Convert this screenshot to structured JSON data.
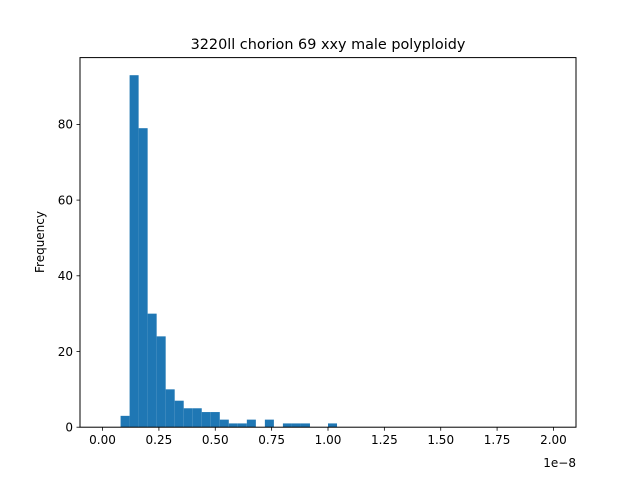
{
  "chart_data": {
    "type": "bar",
    "title": "3220ll chorion 69 xxy male polyploidy",
    "xlabel": "",
    "ylabel": "Frequency",
    "x_offset_label": "1e−8",
    "bar_color": "#1f77b4",
    "grid": false,
    "legend": "none",
    "xlim": [
      -0.1,
      2.1
    ],
    "ylim": [
      0,
      97.65
    ],
    "x_ticks": [
      0.0,
      0.25,
      0.5,
      0.75,
      1.0,
      1.25,
      1.5,
      1.75,
      2.0
    ],
    "x_tick_labels": [
      "0.00",
      "0.25",
      "0.50",
      "0.75",
      "1.00",
      "1.25",
      "1.50",
      "1.75",
      "2.00"
    ],
    "y_ticks": [
      0,
      20,
      40,
      60,
      80
    ],
    "y_tick_labels": [
      "0",
      "20",
      "40",
      "60",
      "80"
    ],
    "bins": [
      {
        "x0": 0.08,
        "x1": 0.12,
        "value": 3
      },
      {
        "x0": 0.12,
        "x1": 0.16,
        "value": 93
      },
      {
        "x0": 0.16,
        "x1": 0.2,
        "value": 79
      },
      {
        "x0": 0.2,
        "x1": 0.24,
        "value": 30
      },
      {
        "x0": 0.24,
        "x1": 0.28,
        "value": 24
      },
      {
        "x0": 0.28,
        "x1": 0.32,
        "value": 10
      },
      {
        "x0": 0.32,
        "x1": 0.36,
        "value": 7
      },
      {
        "x0": 0.36,
        "x1": 0.4,
        "value": 5
      },
      {
        "x0": 0.4,
        "x1": 0.44,
        "value": 5
      },
      {
        "x0": 0.44,
        "x1": 0.48,
        "value": 4
      },
      {
        "x0": 0.48,
        "x1": 0.52,
        "value": 4
      },
      {
        "x0": 0.52,
        "x1": 0.56,
        "value": 2
      },
      {
        "x0": 0.56,
        "x1": 0.6,
        "value": 1
      },
      {
        "x0": 0.6,
        "x1": 0.64,
        "value": 1
      },
      {
        "x0": 0.64,
        "x1": 0.68,
        "value": 2
      },
      {
        "x0": 0.72,
        "x1": 0.76,
        "value": 2
      },
      {
        "x0": 0.8,
        "x1": 0.84,
        "value": 1
      },
      {
        "x0": 0.84,
        "x1": 0.88,
        "value": 1
      },
      {
        "x0": 0.88,
        "x1": 0.92,
        "value": 1
      },
      {
        "x0": 1.0,
        "x1": 1.04,
        "value": 1
      }
    ]
  }
}
